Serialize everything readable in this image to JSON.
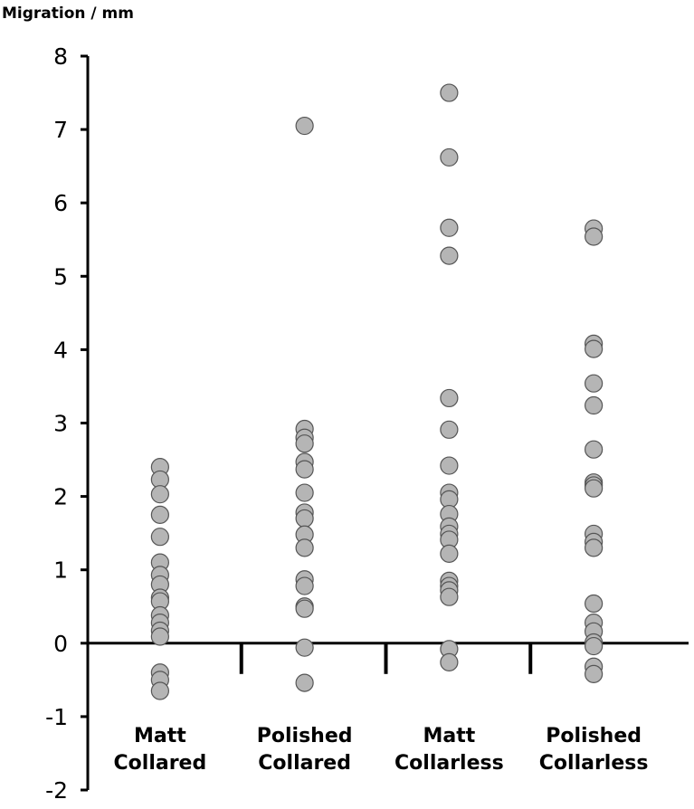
{
  "chart_data": {
    "type": "strip",
    "y_label": "Migration / mm",
    "categories": [
      "Matt Collared",
      "Polished Collared",
      "Matt Collarless",
      "Polished Collarless"
    ],
    "values": [
      [
        2.4,
        2.23,
        2.03,
        1.75,
        1.45,
        1.1,
        0.93,
        0.8,
        0.62,
        0.57,
        0.38,
        0.28,
        0.17,
        0.09,
        -0.4,
        -0.5,
        -0.65
      ],
      [
        7.05,
        2.92,
        2.8,
        2.72,
        2.47,
        2.37,
        2.05,
        1.78,
        1.7,
        1.48,
        1.3,
        0.87,
        0.78,
        0.5,
        0.47,
        -0.06,
        -0.54
      ],
      [
        7.5,
        6.62,
        5.66,
        5.28,
        3.34,
        2.91,
        2.42,
        2.05,
        1.96,
        1.76,
        1.59,
        1.49,
        1.41,
        1.22,
        0.85,
        0.78,
        0.72,
        0.63,
        -0.08,
        -0.26
      ],
      [
        5.65,
        5.54,
        4.08,
        4.01,
        3.54,
        3.24,
        2.64,
        2.19,
        2.15,
        2.11,
        1.49,
        1.38,
        1.3,
        0.54,
        0.28,
        0.16,
        0.01,
        -0.04,
        -0.32,
        -0.42
      ]
    ],
    "color": "#b5b5b5",
    "ylim": [
      -2,
      8
    ],
    "yticks": [
      -2,
      -1,
      0,
      1,
      2,
      3,
      4,
      5,
      6,
      7,
      8
    ]
  }
}
